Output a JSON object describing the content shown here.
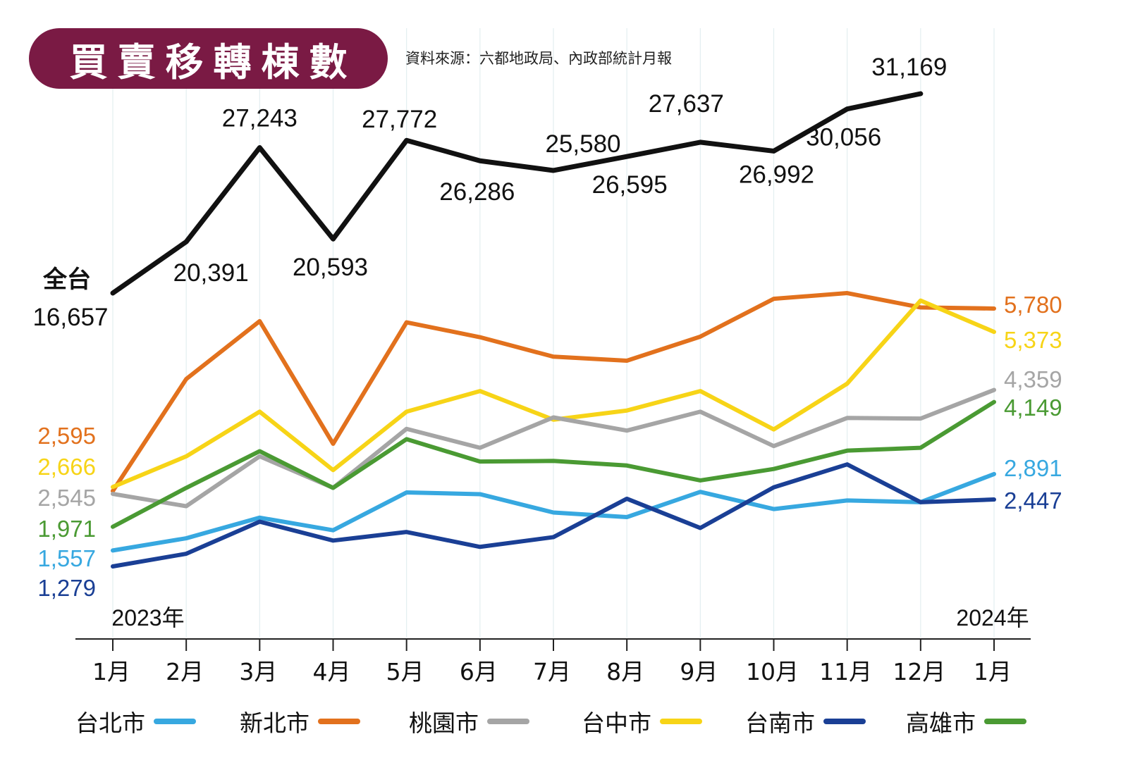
{
  "header": {
    "title": "買賣移轉棟數",
    "source": "資料來源：六都地政局、內政部統計月報"
  },
  "chart_data": {
    "type": "line",
    "title": "買賣移轉棟數",
    "categories": [
      "1月",
      "2月",
      "3月",
      "4月",
      "5月",
      "6月",
      "7月",
      "8月",
      "9月",
      "10月",
      "11月",
      "12月",
      "1月"
    ],
    "year_labels": {
      "start": "2023年",
      "end": "2024年"
    },
    "total": {
      "name": "全台",
      "color": "#111111",
      "values": [
        16657,
        20391,
        27243,
        20593,
        27772,
        26286,
        25580,
        26595,
        27637,
        26992,
        30056,
        31169
      ],
      "labels": [
        "16,657",
        "20,391",
        "27,243",
        "20,593",
        "27,772",
        "26,286",
        "25,580",
        "26,595",
        "27,637",
        "26,992",
        "30,056",
        "31,169"
      ]
    },
    "series": [
      {
        "name": "新北市",
        "color": "#e2711d",
        "start_label": "2,595",
        "end_label": "5,780",
        "values": [
          2595,
          4550,
          5560,
          3420,
          5540,
          5280,
          4940,
          4870,
          5290,
          5950,
          6050,
          5800,
          5780
        ]
      },
      {
        "name": "台中市",
        "color": "#f7d417",
        "start_label": "2,666",
        "end_label": "5,373",
        "values": [
          2666,
          3200,
          3980,
          2960,
          3980,
          4340,
          3840,
          4000,
          4340,
          3670,
          4470,
          5920,
          5373
        ]
      },
      {
        "name": "桃園市",
        "color": "#a5a5a5",
        "start_label": "2,545",
        "end_label": "4,359",
        "values": [
          2545,
          2330,
          3200,
          2650,
          3680,
          3350,
          3880,
          3650,
          3980,
          3380,
          3870,
          3860,
          4359
        ]
      },
      {
        "name": "高雄市",
        "color": "#4a9a33",
        "start_label": "1,971",
        "end_label": "4,149",
        "values": [
          1971,
          2650,
          3290,
          2650,
          3500,
          3110,
          3120,
          3040,
          2780,
          2980,
          3300,
          3350,
          4149
        ]
      },
      {
        "name": "台北市",
        "color": "#37a8e0",
        "start_label": "1,557",
        "end_label": "2,891",
        "values": [
          1557,
          1770,
          2130,
          1910,
          2570,
          2540,
          2220,
          2140,
          2580,
          2280,
          2430,
          2400,
          2891
        ]
      },
      {
        "name": "台南市",
        "color": "#1a3f95",
        "start_label": "1,279",
        "end_label": "2,447",
        "values": [
          1279,
          1500,
          2060,
          1730,
          1880,
          1620,
          1790,
          2460,
          1950,
          2660,
          3060,
          2400,
          2447
        ]
      }
    ],
    "legend_order": [
      "台北市",
      "新北市",
      "桃園市",
      "台中市",
      "台南市",
      "高雄市"
    ],
    "legend_placement": "bottom",
    "grid": "vertical"
  }
}
